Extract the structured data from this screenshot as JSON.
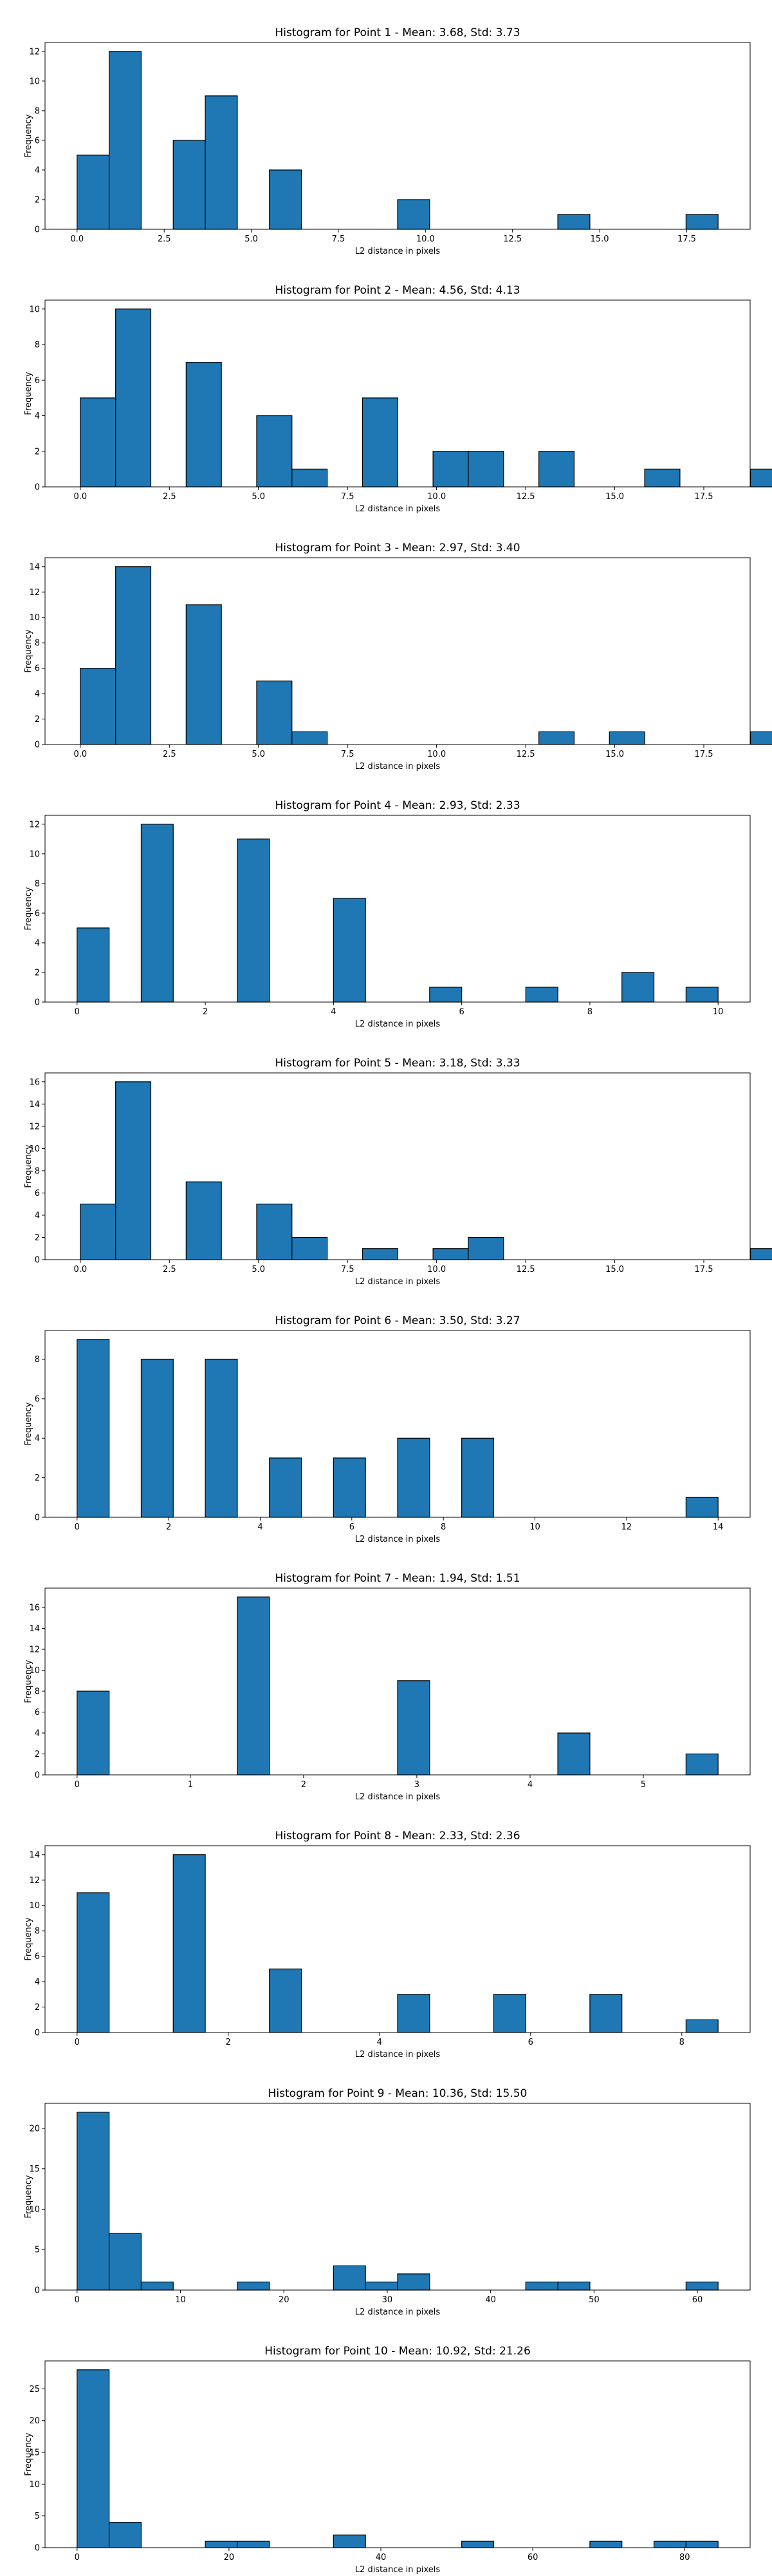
{
  "figure": {
    "background": "#ffffff",
    "bar_color": "#1f77b4",
    "edge_color": "#000000"
  },
  "chart_data": [
    {
      "type": "bar",
      "title": "Histogram for Point 1 - Mean: 3.68, Std: 3.73",
      "xlabel": "L2 distance in pixels",
      "ylabel": "Frequency",
      "bin_width": 0.92,
      "bars": [
        {
          "x": 0.0,
          "y": 5
        },
        {
          "x": 0.92,
          "y": 12
        },
        {
          "x": 2.76,
          "y": 6
        },
        {
          "x": 3.68,
          "y": 9
        },
        {
          "x": 5.52,
          "y": 4
        },
        {
          "x": 9.2,
          "y": 2
        },
        {
          "x": 13.8,
          "y": 1
        },
        {
          "x": 17.48,
          "y": 1
        }
      ],
      "xlim": [
        -0.92,
        19.32
      ],
      "xticks": [
        0.0,
        2.5,
        5.0,
        7.5,
        10.0,
        12.5,
        15.0,
        17.5
      ],
      "xtick_labels": [
        "0.0",
        "2.5",
        "5.0",
        "7.5",
        "10.0",
        "12.5",
        "15.0",
        "17.5"
      ],
      "ylim": [
        0,
        12.6
      ],
      "yticks": [
        0,
        2,
        4,
        6,
        8,
        10,
        12
      ],
      "ytick_labels": [
        "0",
        "2",
        "4",
        "6",
        "8",
        "10",
        "12"
      ]
    },
    {
      "type": "bar",
      "title": "Histogram for Point 2 - Mean: 4.56, Std: 4.13",
      "xlabel": "L2 distance in pixels",
      "ylabel": "Frequency",
      "bin_width": 0.99,
      "bars": [
        {
          "x": 0.0,
          "y": 5
        },
        {
          "x": 0.99,
          "y": 10
        },
        {
          "x": 2.97,
          "y": 7
        },
        {
          "x": 4.95,
          "y": 4
        },
        {
          "x": 5.94,
          "y": 1
        },
        {
          "x": 7.92,
          "y": 5
        },
        {
          "x": 9.9,
          "y": 2
        },
        {
          "x": 10.89,
          "y": 2
        },
        {
          "x": 12.87,
          "y": 2
        },
        {
          "x": 15.84,
          "y": 1
        },
        {
          "x": 18.81,
          "y": 1
        }
      ],
      "xlim": [
        -0.99,
        18.8
      ],
      "xticks": [
        0.0,
        2.5,
        5.0,
        7.5,
        10.0,
        12.5,
        15.0,
        17.5
      ],
      "xtick_labels": [
        "0.0",
        "2.5",
        "5.0",
        "7.5",
        "10.0",
        "12.5",
        "15.0",
        "17.5"
      ],
      "ylim": [
        0,
        10.5
      ],
      "yticks": [
        0,
        2,
        4,
        6,
        8,
        10
      ],
      "ytick_labels": [
        "0",
        "2",
        "4",
        "6",
        "8",
        "10"
      ]
    },
    {
      "type": "bar",
      "title": "Histogram for Point 3 - Mean: 2.97, Std: 3.40",
      "xlabel": "L2 distance in pixels",
      "ylabel": "Frequency",
      "bin_width": 0.99,
      "bars": [
        {
          "x": 0.0,
          "y": 6
        },
        {
          "x": 0.99,
          "y": 14
        },
        {
          "x": 2.97,
          "y": 11
        },
        {
          "x": 4.95,
          "y": 5
        },
        {
          "x": 5.94,
          "y": 1
        },
        {
          "x": 12.87,
          "y": 1
        },
        {
          "x": 14.85,
          "y": 1
        },
        {
          "x": 18.81,
          "y": 1
        }
      ],
      "xlim": [
        -0.99,
        18.8
      ],
      "xticks": [
        0.0,
        2.5,
        5.0,
        7.5,
        10.0,
        12.5,
        15.0,
        17.5
      ],
      "xtick_labels": [
        "0.0",
        "2.5",
        "5.0",
        "7.5",
        "10.0",
        "12.5",
        "15.0",
        "17.5"
      ],
      "ylim": [
        0,
        14.7
      ],
      "yticks": [
        0,
        2,
        4,
        6,
        8,
        10,
        12,
        14
      ],
      "ytick_labels": [
        "0",
        "2",
        "4",
        "6",
        "8",
        "10",
        "12",
        "14"
      ]
    },
    {
      "type": "bar",
      "title": "Histogram for Point 4 - Mean: 2.93, Std: 2.33",
      "xlabel": "L2 distance in pixels",
      "ylabel": "Frequency",
      "bin_width": 0.5,
      "bars": [
        {
          "x": 0.0,
          "y": 5
        },
        {
          "x": 1.0,
          "y": 12
        },
        {
          "x": 2.5,
          "y": 11
        },
        {
          "x": 4.0,
          "y": 7
        },
        {
          "x": 5.5,
          "y": 1
        },
        {
          "x": 7.0,
          "y": 1
        },
        {
          "x": 8.5,
          "y": 2
        },
        {
          "x": 9.5,
          "y": 1
        }
      ],
      "xlim": [
        -0.5,
        10.5
      ],
      "xticks": [
        0,
        2,
        4,
        6,
        8,
        10
      ],
      "xtick_labels": [
        "0",
        "2",
        "4",
        "6",
        "8",
        "10"
      ],
      "ylim": [
        0,
        12.6
      ],
      "yticks": [
        0,
        2,
        4,
        6,
        8,
        10,
        12
      ],
      "ytick_labels": [
        "0",
        "2",
        "4",
        "6",
        "8",
        "10",
        "12"
      ]
    },
    {
      "type": "bar",
      "title": "Histogram for Point 5 - Mean: 3.18, Std: 3.33",
      "xlabel": "L2 distance in pixels",
      "ylabel": "Frequency",
      "bin_width": 0.99,
      "bars": [
        {
          "x": 0.0,
          "y": 5
        },
        {
          "x": 0.99,
          "y": 16
        },
        {
          "x": 2.97,
          "y": 7
        },
        {
          "x": 4.95,
          "y": 5
        },
        {
          "x": 5.94,
          "y": 2
        },
        {
          "x": 7.92,
          "y": 1
        },
        {
          "x": 9.9,
          "y": 1
        },
        {
          "x": 10.89,
          "y": 2
        },
        {
          "x": 18.81,
          "y": 1
        }
      ],
      "xlim": [
        -0.99,
        18.8
      ],
      "xticks": [
        0.0,
        2.5,
        5.0,
        7.5,
        10.0,
        12.5,
        15.0,
        17.5
      ],
      "xtick_labels": [
        "0.0",
        "2.5",
        "5.0",
        "7.5",
        "10.0",
        "12.5",
        "15.0",
        "17.5"
      ],
      "ylim": [
        0,
        16.8
      ],
      "yticks": [
        0,
        2,
        4,
        6,
        8,
        10,
        12,
        14,
        16
      ],
      "ytick_labels": [
        "0",
        "2",
        "4",
        "6",
        "8",
        "10",
        "12",
        "14",
        "16"
      ]
    },
    {
      "type": "bar",
      "title": "Histogram for Point 6 - Mean: 3.50, Std: 3.27",
      "xlabel": "L2 distance in pixels",
      "ylabel": "Frequency",
      "bin_width": 0.7,
      "bars": [
        {
          "x": 0.0,
          "y": 9
        },
        {
          "x": 1.4,
          "y": 8
        },
        {
          "x": 2.8,
          "y": 8
        },
        {
          "x": 4.2,
          "y": 3
        },
        {
          "x": 5.6,
          "y": 3
        },
        {
          "x": 7.0,
          "y": 4
        },
        {
          "x": 8.4,
          "y": 4
        },
        {
          "x": 13.3,
          "y": 1
        }
      ],
      "xlim": [
        -0.7,
        14.7
      ],
      "xticks": [
        0,
        2,
        4,
        6,
        8,
        10,
        12,
        14
      ],
      "xtick_labels": [
        "0",
        "2",
        "4",
        "6",
        "8",
        "10",
        "12",
        "14"
      ],
      "ylim": [
        0,
        9.45
      ],
      "yticks": [
        0,
        2,
        4,
        6,
        8
      ],
      "ytick_labels": [
        "0",
        "2",
        "4",
        "6",
        "8"
      ]
    },
    {
      "type": "bar",
      "title": "Histogram for Point 7 - Mean: 1.94, Std: 1.51",
      "xlabel": "L2 distance in pixels",
      "ylabel": "Frequency",
      "bin_width": 0.283,
      "bars": [
        {
          "x": 0.0,
          "y": 8
        },
        {
          "x": 1.415,
          "y": 17
        },
        {
          "x": 2.83,
          "y": 9
        },
        {
          "x": 4.245,
          "y": 4
        },
        {
          "x": 5.377,
          "y": 2
        }
      ],
      "xlim": [
        -0.283,
        5.943
      ],
      "xticks": [
        0,
        1,
        2,
        3,
        4,
        5
      ],
      "xtick_labels": [
        "0",
        "1",
        "2",
        "3",
        "4",
        "5"
      ],
      "ylim": [
        0,
        17.85
      ],
      "yticks": [
        0,
        2,
        4,
        6,
        8,
        10,
        12,
        14,
        16
      ],
      "ytick_labels": [
        "0",
        "2",
        "4",
        "6",
        "8",
        "10",
        "12",
        "14",
        "16"
      ]
    },
    {
      "type": "bar",
      "title": "Histogram for Point 8 - Mean: 2.33, Std: 2.36",
      "xlabel": "L2 distance in pixels",
      "ylabel": "Frequency",
      "bin_width": 0.424,
      "bars": [
        {
          "x": 0.0,
          "y": 11
        },
        {
          "x": 1.272,
          "y": 14
        },
        {
          "x": 2.544,
          "y": 5
        },
        {
          "x": 4.24,
          "y": 3
        },
        {
          "x": 5.512,
          "y": 3
        },
        {
          "x": 6.784,
          "y": 3
        },
        {
          "x": 8.056,
          "y": 1
        }
      ],
      "xlim": [
        -0.424,
        8.904
      ],
      "xticks": [
        0,
        2,
        4,
        6,
        8
      ],
      "xtick_labels": [
        "0",
        "2",
        "4",
        "6",
        "8"
      ],
      "ylim": [
        0,
        14.7
      ],
      "yticks": [
        0,
        2,
        4,
        6,
        8,
        10,
        12,
        14
      ],
      "ytick_labels": [
        "0",
        "2",
        "4",
        "6",
        "8",
        "10",
        "12",
        "14"
      ]
    },
    {
      "type": "bar",
      "title": "Histogram for Point 9 - Mean: 10.36, Std: 15.50",
      "xlabel": "L2 distance in pixels",
      "ylabel": "Frequency",
      "bin_width": 3.1,
      "bars": [
        {
          "x": 0.0,
          "y": 22
        },
        {
          "x": 3.1,
          "y": 7
        },
        {
          "x": 6.2,
          "y": 1
        },
        {
          "x": 15.5,
          "y": 1
        },
        {
          "x": 24.8,
          "y": 3
        },
        {
          "x": 27.9,
          "y": 1
        },
        {
          "x": 31.0,
          "y": 2
        },
        {
          "x": 43.4,
          "y": 1
        },
        {
          "x": 46.5,
          "y": 1
        },
        {
          "x": 58.9,
          "y": 1
        }
      ],
      "xlim": [
        -3.1,
        65.1
      ],
      "xticks": [
        0,
        10,
        20,
        30,
        40,
        50,
        60
      ],
      "xtick_labels": [
        "0",
        "10",
        "20",
        "30",
        "40",
        "50",
        "60"
      ],
      "ylim": [
        0,
        23.1
      ],
      "yticks": [
        0,
        5,
        10,
        15,
        20
      ],
      "ytick_labels": [
        "0",
        "5",
        "10",
        "15",
        "20"
      ]
    },
    {
      "type": "bar",
      "title": "Histogram for Point 10 - Mean: 10.92, Std: 21.26",
      "xlabel": "L2 distance in pixels",
      "ylabel": "Frequency",
      "bin_width": 4.22,
      "bars": [
        {
          "x": 0.0,
          "y": 28
        },
        {
          "x": 4.22,
          "y": 4
        },
        {
          "x": 16.88,
          "y": 1
        },
        {
          "x": 21.1,
          "y": 1
        },
        {
          "x": 33.76,
          "y": 2
        },
        {
          "x": 50.64,
          "y": 1
        },
        {
          "x": 67.52,
          "y": 1
        },
        {
          "x": 75.96,
          "y": 1
        },
        {
          "x": 80.18,
          "y": 1
        }
      ],
      "xlim": [
        -4.22,
        88.62
      ],
      "xticks": [
        0,
        20,
        40,
        60,
        80
      ],
      "xtick_labels": [
        "0",
        "20",
        "40",
        "60",
        "80"
      ],
      "ylim": [
        0,
        29.4
      ],
      "yticks": [
        0,
        5,
        10,
        15,
        20,
        25
      ],
      "ytick_labels": [
        "0",
        "5",
        "10",
        "15",
        "20",
        "25"
      ]
    }
  ]
}
